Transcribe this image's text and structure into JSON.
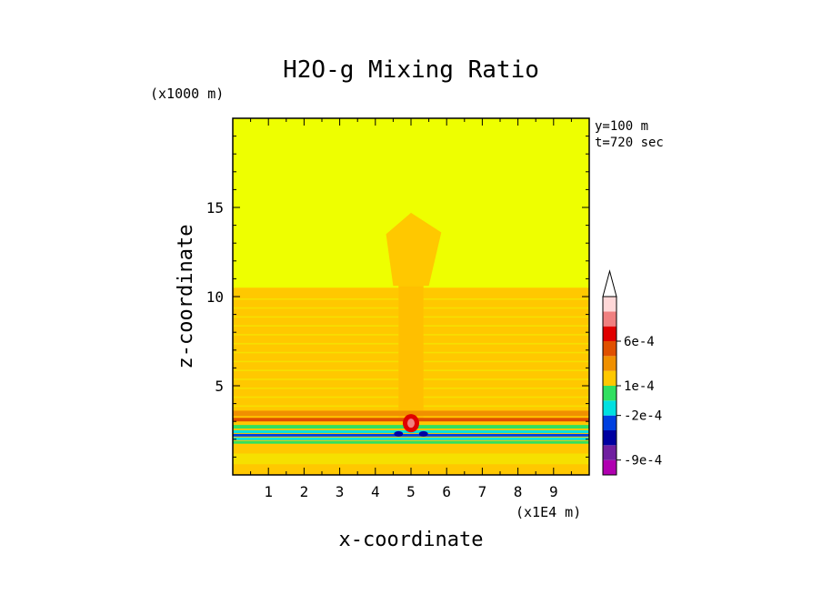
{
  "chart_data": {
    "type": "heatmap",
    "title": "H2O-g Mixing Ratio",
    "xlabel": "x-coordinate",
    "ylabel": "z-coordinate",
    "x_unit": "(x1E4 m)",
    "y_unit": "(x1000 m)",
    "annotations": [
      "y=100 m",
      "t=720 sec"
    ],
    "xlim": [
      0,
      10
    ],
    "ylim": [
      0,
      20
    ],
    "x_ticks": [
      1,
      2,
      3,
      4,
      5,
      6,
      7,
      8,
      9
    ],
    "y_ticks": [
      5,
      10,
      15
    ],
    "grid": false,
    "colorbar": {
      "labels": [
        {
          "text": "6e-4",
          "value": 0.0006
        },
        {
          "text": "1e-4",
          "value": 0.0001
        },
        {
          "text": "-2e-4",
          "value": -0.0002
        },
        {
          "text": "-9e-4",
          "value": -0.0009
        }
      ],
      "colors": [
        "#b000b0",
        "#7020a0",
        "#0000a0",
        "#0040e0",
        "#00e0e0",
        "#30e060",
        "#ffc800",
        "#f09000",
        "#e05000",
        "#e00000",
        "#f08080",
        "#ffd8d8"
      ],
      "extend": "max"
    },
    "background_color": "#eeff00",
    "layered_color": "#ffc800"
  }
}
